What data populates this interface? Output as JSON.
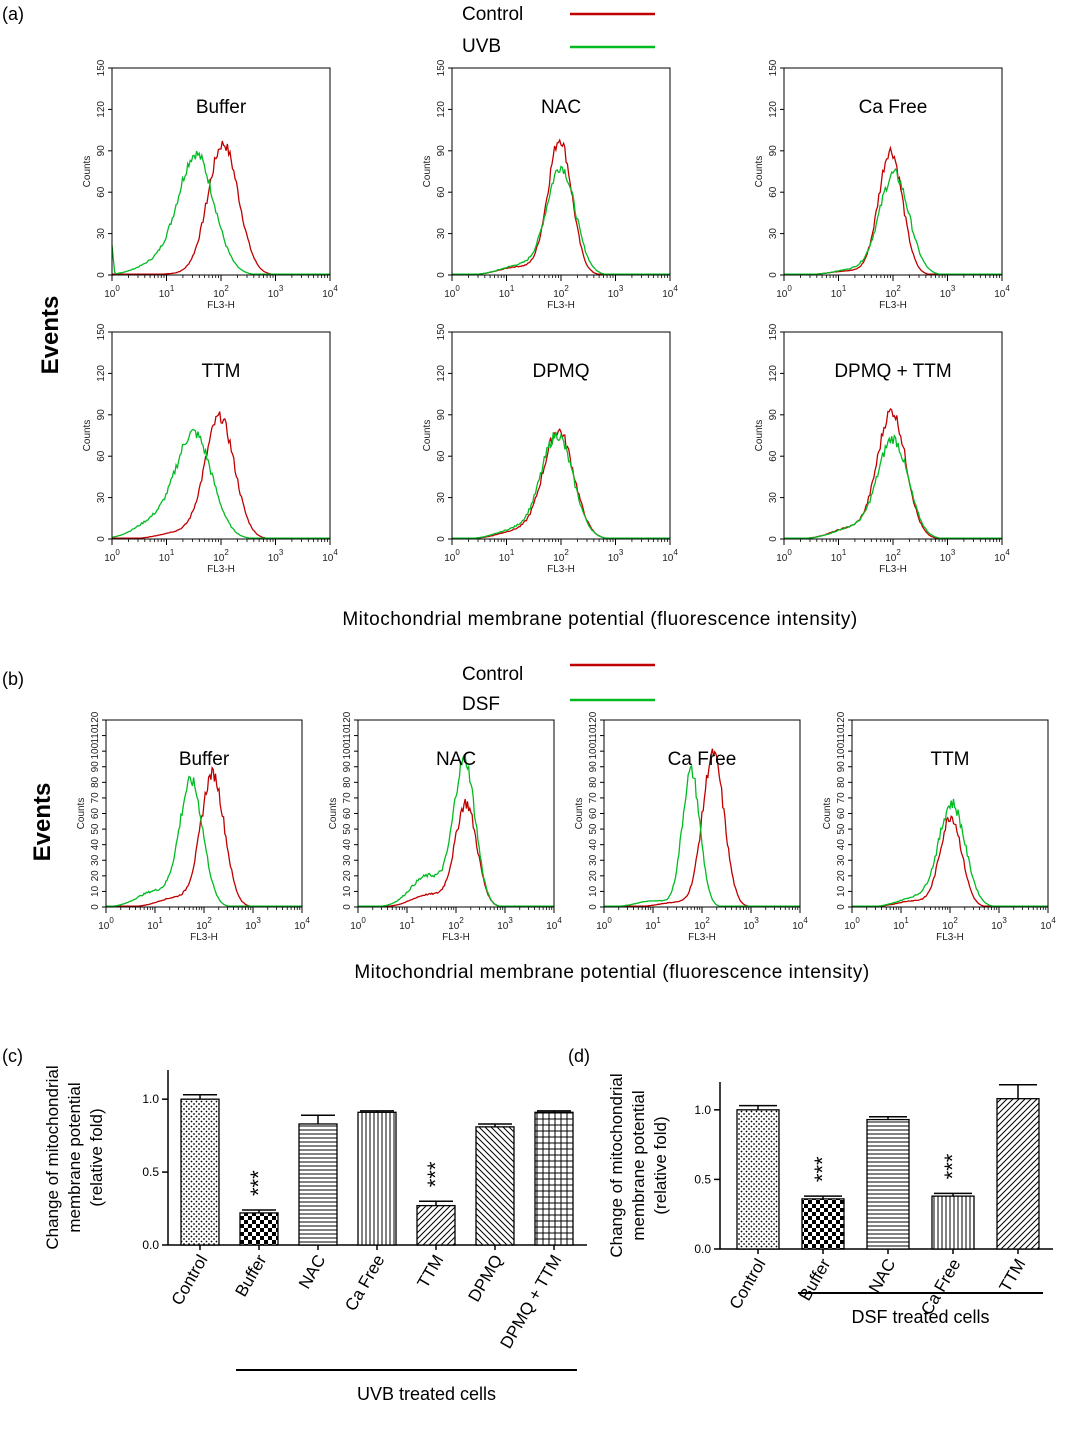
{
  "panel_labels": {
    "a": "(a)",
    "b": "(b)",
    "c": "(c)",
    "d": "(d)"
  },
  "colors": {
    "control": "#c00000",
    "treated": "#00bb22"
  },
  "legend_a": [
    {
      "label": "Control",
      "color": "#c00000"
    },
    {
      "label": "UVB",
      "color": "#00bb22"
    }
  ],
  "legend_b": [
    {
      "label": "Control",
      "color": "#c00000"
    },
    {
      "label": "DSF",
      "color": "#00bb22"
    }
  ],
  "events_label": "Events",
  "hist_ylabel": "Counts",
  "hist_xlabel": "FL3-H",
  "x_axis_title_a": "Mitochondrial membrane potential (fluorescence intensity)",
  "x_axis_title_b": "Mitochondrial membrane potential (fluorescence intensity)",
  "chart_data": [
    {
      "type": "line",
      "panel": "a",
      "title": "Buffer",
      "x_scale": "log",
      "xlim": [
        1,
        10000
      ],
      "ylim": [
        0,
        150
      ],
      "yticks": [
        0,
        30,
        60,
        90,
        120,
        150
      ],
      "series": [
        {
          "name": "Control",
          "peak_x": 110,
          "peak_y": 95,
          "width": 0.28,
          "shoulder_y": 1
        },
        {
          "name": "UVB",
          "peak_x": 35,
          "peak_y": 87,
          "width": 0.33,
          "shoulder_y": 8
        }
      ]
    },
    {
      "type": "line",
      "panel": "a",
      "title": "NAC",
      "x_scale": "log",
      "xlim": [
        1,
        10000
      ],
      "ylim": [
        0,
        150
      ],
      "yticks": [
        0,
        30,
        60,
        90,
        120,
        150
      ],
      "series": [
        {
          "name": "Control",
          "peak_x": 95,
          "peak_y": 98,
          "width": 0.22,
          "shoulder_y": 6
        },
        {
          "name": "UVB",
          "peak_x": 100,
          "peak_y": 78,
          "width": 0.26,
          "shoulder_y": 7
        }
      ]
    },
    {
      "type": "line",
      "panel": "a",
      "title": "Ca Free",
      "x_scale": "log",
      "xlim": [
        1,
        10000
      ],
      "ylim": [
        0,
        150
      ],
      "yticks": [
        0,
        30,
        60,
        90,
        120,
        150
      ],
      "series": [
        {
          "name": "Control",
          "peak_x": 90,
          "peak_y": 90,
          "width": 0.22,
          "shoulder_y": 3
        },
        {
          "name": "UVB",
          "peak_x": 105,
          "peak_y": 73,
          "width": 0.27,
          "shoulder_y": 4
        }
      ]
    },
    {
      "type": "line",
      "panel": "a",
      "title": "TTM",
      "x_scale": "log",
      "xlim": [
        1,
        10000
      ],
      "ylim": [
        0,
        150
      ],
      "yticks": [
        0,
        30,
        60,
        90,
        120,
        150
      ],
      "series": [
        {
          "name": "Control",
          "peak_x": 95,
          "peak_y": 88,
          "width": 0.27,
          "shoulder_y": 5
        },
        {
          "name": "UVB",
          "peak_x": 32,
          "peak_y": 76,
          "width": 0.33,
          "shoulder_y": 12
        }
      ]
    },
    {
      "type": "line",
      "panel": "a",
      "title": "DPMQ",
      "x_scale": "log",
      "xlim": [
        1,
        10000
      ],
      "ylim": [
        0,
        150
      ],
      "yticks": [
        0,
        30,
        60,
        90,
        120,
        150
      ],
      "series": [
        {
          "name": "Control",
          "peak_x": 90,
          "peak_y": 78,
          "width": 0.28,
          "shoulder_y": 6
        },
        {
          "name": "UVB",
          "peak_x": 85,
          "peak_y": 75,
          "width": 0.29,
          "shoulder_y": 7
        }
      ]
    },
    {
      "type": "line",
      "panel": "a",
      "title": "DPMQ + TTM",
      "x_scale": "log",
      "xlim": [
        1,
        10000
      ],
      "ylim": [
        0,
        150
      ],
      "yticks": [
        0,
        30,
        60,
        90,
        120,
        150
      ],
      "series": [
        {
          "name": "Control",
          "peak_x": 95,
          "peak_y": 92,
          "width": 0.26,
          "shoulder_y": 8
        },
        {
          "name": "UVB",
          "peak_x": 100,
          "peak_y": 72,
          "width": 0.28,
          "shoulder_y": 8
        }
      ]
    },
    {
      "type": "line",
      "panel": "b",
      "title": "Buffer",
      "x_scale": "log",
      "xlim": [
        1,
        10000
      ],
      "ylim": [
        0,
        120
      ],
      "yticks": [
        0,
        10,
        20,
        30,
        40,
        50,
        60,
        70,
        80,
        90,
        100,
        110,
        120
      ],
      "series": [
        {
          "name": "Control",
          "peak_x": 150,
          "peak_y": 85,
          "width": 0.24,
          "shoulder_y": 6
        },
        {
          "name": "DSF",
          "peak_x": 55,
          "peak_y": 80,
          "width": 0.24,
          "shoulder_y": 10
        }
      ]
    },
    {
      "type": "line",
      "panel": "b",
      "title": "NAC",
      "x_scale": "log",
      "xlim": [
        1,
        10000
      ],
      "ylim": [
        0,
        120
      ],
      "yticks": [
        0,
        10,
        20,
        30,
        40,
        50,
        60,
        70,
        80,
        90,
        100,
        110,
        120
      ],
      "series": [
        {
          "name": "Control",
          "peak_x": 160,
          "peak_y": 66,
          "width": 0.22,
          "shoulder_y": 8
        },
        {
          "name": "DSF",
          "peak_x": 150,
          "peak_y": 93,
          "width": 0.22,
          "shoulder_y": 20
        }
      ]
    },
    {
      "type": "line",
      "panel": "b",
      "title": "Ca Free",
      "x_scale": "log",
      "xlim": [
        1,
        10000
      ],
      "ylim": [
        0,
        120
      ],
      "yticks": [
        0,
        10,
        20,
        30,
        40,
        50,
        60,
        70,
        80,
        90,
        100,
        110,
        120
      ],
      "series": [
        {
          "name": "Control",
          "peak_x": 170,
          "peak_y": 98,
          "width": 0.22,
          "shoulder_y": 3
        },
        {
          "name": "DSF",
          "peak_x": 60,
          "peak_y": 87,
          "width": 0.18,
          "shoulder_y": 4
        }
      ]
    },
    {
      "type": "line",
      "panel": "b",
      "title": "TTM",
      "x_scale": "log",
      "xlim": [
        1,
        10000
      ],
      "ylim": [
        0,
        120
      ],
      "yticks": [
        0,
        10,
        20,
        30,
        40,
        50,
        60,
        70,
        80,
        90,
        100,
        110,
        120
      ],
      "series": [
        {
          "name": "Control",
          "peak_x": 105,
          "peak_y": 58,
          "width": 0.22,
          "shoulder_y": 4
        },
        {
          "name": "DSF",
          "peak_x": 110,
          "peak_y": 66,
          "width": 0.27,
          "shoulder_y": 6
        }
      ]
    },
    {
      "type": "bar",
      "panel": "c",
      "ylabel": "Change of mitochondrial membrane potential (relative fold)",
      "ylim": [
        0,
        1.2
      ],
      "yticks": [
        0.0,
        0.5,
        1.0
      ],
      "categories": [
        "Control",
        "Buffer",
        "NAC",
        "Ca Free",
        "TTM",
        "DPMQ",
        "DPMQ + TTM"
      ],
      "values": [
        1.0,
        0.22,
        0.83,
        0.91,
        0.27,
        0.81,
        0.91
      ],
      "errors": [
        0.03,
        0.02,
        0.06,
        0.01,
        0.03,
        0.02,
        0.01
      ],
      "significance": [
        "",
        "***",
        "",
        "",
        "***",
        "",
        ""
      ],
      "group_label": "UVB treated cells",
      "group_range": [
        1,
        6
      ]
    },
    {
      "type": "bar",
      "panel": "d",
      "ylabel": "Change of mitochondrial membrane potential (relative fold)",
      "ylim": [
        0,
        1.2
      ],
      "yticks": [
        0.0,
        0.5,
        1.0
      ],
      "categories": [
        "Control",
        "Buffer",
        "NAC",
        "Ca Free",
        "TTM"
      ],
      "values": [
        1.0,
        0.36,
        0.93,
        0.38,
        1.08
      ],
      "errors": [
        0.03,
        0.02,
        0.02,
        0.02,
        0.1
      ],
      "significance": [
        "",
        "***",
        "",
        "***",
        ""
      ],
      "group_label": "DSF treated cells",
      "group_range": [
        1,
        4
      ]
    }
  ]
}
